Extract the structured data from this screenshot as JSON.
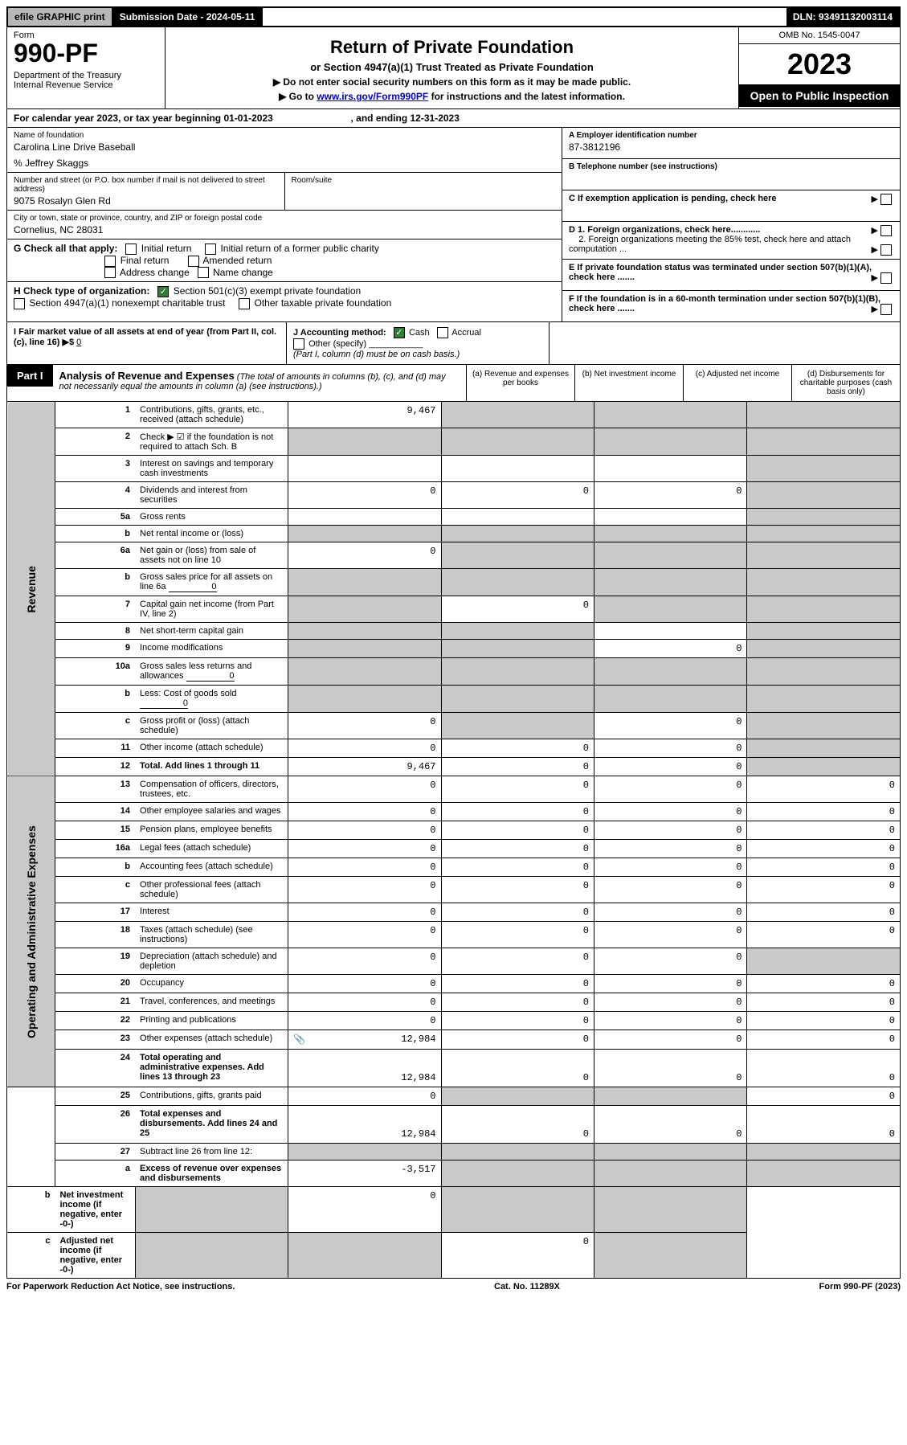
{
  "top": {
    "efile": "efile GRAPHIC print",
    "sub_label": "Submission Date - 2024-05-11",
    "dln": "DLN: 93491132003114"
  },
  "header": {
    "form": "Form",
    "form_no": "990-PF",
    "dept": "Department of the Treasury\nInternal Revenue Service",
    "title": "Return of Private Foundation",
    "subtitle": "or Section 4947(a)(1) Trust Treated as Private Foundation",
    "arrow1": "▶ Do not enter social security numbers on this form as it may be made public.",
    "arrow2_pre": "▶ Go to ",
    "arrow2_link": "www.irs.gov/Form990PF",
    "arrow2_post": " for instructions and the latest information.",
    "omb": "OMB No. 1545-0047",
    "year": "2023",
    "open": "Open to Public Inspection"
  },
  "cal": "For calendar year 2023, or tax year beginning 01-01-2023                             , and ending 12-31-2023",
  "entity": {
    "name_lbl": "Name of foundation",
    "name": "Carolina Line Drive Baseball",
    "care_of": "% Jeffrey Skaggs",
    "addr_lbl": "Number and street (or P.O. box number if mail is not delivered to street address)",
    "addr": "9075 Rosalyn Glen Rd",
    "room_lbl": "Room/suite",
    "city_lbl": "City or town, state or province, country, and ZIP or foreign postal code",
    "city": "Cornelius, NC  28031",
    "a_lbl": "A Employer identification number",
    "a_val": "87-3812196",
    "b_lbl": "B Telephone number (see instructions)",
    "c_lbl": "C If exemption application is pending, check here",
    "d1": "D 1. Foreign organizations, check here............",
    "d2": "2. Foreign organizations meeting the 85% test, check here and attach computation ...",
    "e": "E  If private foundation status was terminated under section 507(b)(1)(A), check here .......",
    "f": "F  If the foundation is in a 60-month termination under section 507(b)(1)(B), check here .......",
    "g": "G Check all that apply:",
    "g_opts": [
      "Initial return",
      "Initial return of a former public charity",
      "Final return",
      "Amended return",
      "Address change",
      "Name change"
    ],
    "h": "H Check type of organization:",
    "h1": "Section 501(c)(3) exempt private foundation",
    "h2": "Section 4947(a)(1) nonexempt charitable trust",
    "h3": "Other taxable private foundation",
    "i": "I Fair market value of all assets at end of year (from Part II, col. (c), line 16) ▶$ ",
    "i_val": "0",
    "j": "J Accounting method:",
    "j_opts": [
      "Cash",
      "Accrual"
    ],
    "j_other": "Other (specify)",
    "j_note": "(Part I, column (d) must be on cash basis.)"
  },
  "part1": {
    "label": "Part I",
    "title": "Analysis of Revenue and Expenses",
    "note": "(The total of amounts in columns (b), (c), and (d) may not necessarily equal the amounts in column (a) (see instructions).)",
    "col_a": "(a)   Revenue and expenses per books",
    "col_b": "(b)   Net investment income",
    "col_c": "(c)   Adjusted net income",
    "col_d": "(d)   Disbursements for charitable purposes (cash basis only)"
  },
  "side": {
    "rev": "Revenue",
    "exp": "Operating and Administrative Expenses"
  },
  "rows": [
    {
      "ln": "1",
      "desc": "Contributions, gifts, grants, etc., received (attach schedule)",
      "a": "9,467",
      "b": "",
      "c": "",
      "d": "",
      "shade": [
        "b",
        "c",
        "d"
      ]
    },
    {
      "ln": "2",
      "desc": "Check ▶ ☑ if the foundation is not required to attach Sch. B",
      "a": "",
      "b": "",
      "c": "",
      "d": "",
      "shade": [
        "a",
        "b",
        "c",
        "d"
      ],
      "bold_not": true
    },
    {
      "ln": "3",
      "desc": "Interest on savings and temporary cash investments",
      "a": "",
      "b": "",
      "c": "",
      "d": "",
      "shade": [
        "d"
      ]
    },
    {
      "ln": "4",
      "desc": "Dividends and interest from securities",
      "a": "0",
      "b": "0",
      "c": "0",
      "d": "",
      "shade": [
        "d"
      ]
    },
    {
      "ln": "5a",
      "desc": "Gross rents",
      "a": "",
      "b": "",
      "c": "",
      "d": "",
      "shade": [
        "d"
      ]
    },
    {
      "ln": "b",
      "desc": "Net rental income or (loss)",
      "a": "",
      "b": "",
      "c": "",
      "d": "",
      "shade": [
        "a",
        "b",
        "c",
        "d"
      ],
      "inline": true
    },
    {
      "ln": "6a",
      "desc": "Net gain or (loss) from sale of assets not on line 10",
      "a": "0",
      "b": "",
      "c": "",
      "d": "",
      "shade": [
        "b",
        "c",
        "d"
      ]
    },
    {
      "ln": "b",
      "desc": "Gross sales price for all assets on line 6a",
      "a": "",
      "b": "",
      "c": "",
      "d": "",
      "shade": [
        "a",
        "b",
        "c",
        "d"
      ],
      "inline": true,
      "inline_val": "0"
    },
    {
      "ln": "7",
      "desc": "Capital gain net income (from Part IV, line 2)",
      "a": "",
      "b": "0",
      "c": "",
      "d": "",
      "shade": [
        "a",
        "c",
        "d"
      ]
    },
    {
      "ln": "8",
      "desc": "Net short-term capital gain",
      "a": "",
      "b": "",
      "c": "",
      "d": "",
      "shade": [
        "a",
        "b",
        "d"
      ]
    },
    {
      "ln": "9",
      "desc": "Income modifications",
      "a": "",
      "b": "",
      "c": "0",
      "d": "",
      "shade": [
        "a",
        "b",
        "d"
      ]
    },
    {
      "ln": "10a",
      "desc": "Gross sales less returns and allowances",
      "a": "",
      "b": "",
      "c": "",
      "d": "",
      "shade": [
        "a",
        "b",
        "c",
        "d"
      ],
      "inline": true,
      "inline_val": "0"
    },
    {
      "ln": "b",
      "desc": "Less: Cost of goods sold",
      "a": "",
      "b": "",
      "c": "",
      "d": "",
      "shade": [
        "a",
        "b",
        "c",
        "d"
      ],
      "inline": true,
      "inline_val": "0"
    },
    {
      "ln": "c",
      "desc": "Gross profit or (loss) (attach schedule)",
      "a": "0",
      "b": "",
      "c": "0",
      "d": "",
      "shade": [
        "b",
        "d"
      ]
    },
    {
      "ln": "11",
      "desc": "Other income (attach schedule)",
      "a": "0",
      "b": "0",
      "c": "0",
      "d": "",
      "shade": [
        "d"
      ]
    },
    {
      "ln": "12",
      "desc": "Total. Add lines 1 through 11",
      "a": "9,467",
      "b": "0",
      "c": "0",
      "d": "",
      "shade": [
        "d"
      ],
      "bold": true
    },
    {
      "ln": "13",
      "desc": "Compensation of officers, directors, trustees, etc.",
      "a": "0",
      "b": "0",
      "c": "0",
      "d": "0"
    },
    {
      "ln": "14",
      "desc": "Other employee salaries and wages",
      "a": "0",
      "b": "0",
      "c": "0",
      "d": "0"
    },
    {
      "ln": "15",
      "desc": "Pension plans, employee benefits",
      "a": "0",
      "b": "0",
      "c": "0",
      "d": "0"
    },
    {
      "ln": "16a",
      "desc": "Legal fees (attach schedule)",
      "a": "0",
      "b": "0",
      "c": "0",
      "d": "0"
    },
    {
      "ln": "b",
      "desc": "Accounting fees (attach schedule)",
      "a": "0",
      "b": "0",
      "c": "0",
      "d": "0"
    },
    {
      "ln": "c",
      "desc": "Other professional fees (attach schedule)",
      "a": "0",
      "b": "0",
      "c": "0",
      "d": "0"
    },
    {
      "ln": "17",
      "desc": "Interest",
      "a": "0",
      "b": "0",
      "c": "0",
      "d": "0"
    },
    {
      "ln": "18",
      "desc": "Taxes (attach schedule) (see instructions)",
      "a": "0",
      "b": "0",
      "c": "0",
      "d": "0"
    },
    {
      "ln": "19",
      "desc": "Depreciation (attach schedule) and depletion",
      "a": "0",
      "b": "0",
      "c": "0",
      "d": "",
      "shade": [
        "d"
      ]
    },
    {
      "ln": "20",
      "desc": "Occupancy",
      "a": "0",
      "b": "0",
      "c": "0",
      "d": "0"
    },
    {
      "ln": "21",
      "desc": "Travel, conferences, and meetings",
      "a": "0",
      "b": "0",
      "c": "0",
      "d": "0"
    },
    {
      "ln": "22",
      "desc": "Printing and publications",
      "a": "0",
      "b": "0",
      "c": "0",
      "d": "0"
    },
    {
      "ln": "23",
      "desc": "Other expenses (attach schedule)",
      "a": "12,984",
      "b": "0",
      "c": "0",
      "d": "0",
      "icon": true
    },
    {
      "ln": "24",
      "desc": "Total operating and administrative expenses. Add lines 13 through 23",
      "a": "12,984",
      "b": "0",
      "c": "0",
      "d": "0",
      "bold": true,
      "tall": true
    },
    {
      "ln": "25",
      "desc": "Contributions, gifts, grants paid",
      "a": "0",
      "b": "",
      "c": "",
      "d": "0",
      "shade": [
        "b",
        "c"
      ]
    },
    {
      "ln": "26",
      "desc": "Total expenses and disbursements. Add lines 24 and 25",
      "a": "12,984",
      "b": "0",
      "c": "0",
      "d": "0",
      "bold": true,
      "tall": true
    },
    {
      "ln": "27",
      "desc": "Subtract line 26 from line 12:",
      "a": "",
      "b": "",
      "c": "",
      "d": "",
      "shade": [
        "a",
        "b",
        "c",
        "d"
      ]
    },
    {
      "ln": "a",
      "desc": "Excess of revenue over expenses and disbursements",
      "a": "-3,517",
      "b": "",
      "c": "",
      "d": "",
      "shade": [
        "b",
        "c",
        "d"
      ],
      "bold": true
    },
    {
      "ln": "b",
      "desc": "Net investment income (if negative, enter -0-)",
      "a": "",
      "b": "0",
      "c": "",
      "d": "",
      "shade": [
        "a",
        "c",
        "d"
      ],
      "bold": true
    },
    {
      "ln": "c",
      "desc": "Adjusted net income (if negative, enter -0-)",
      "a": "",
      "b": "",
      "c": "0",
      "d": "",
      "shade": [
        "a",
        "b",
        "d"
      ],
      "bold": true
    }
  ],
  "footer": {
    "left": "For Paperwork Reduction Act Notice, see instructions.",
    "mid": "Cat. No. 11289X",
    "right": "Form 990-PF (2023)"
  },
  "colors": {
    "black": "#000000",
    "grey_bg": "#c9c9c9",
    "efile_bg": "#b8b8b8",
    "green": "#2e7d32",
    "link": "#0000cc"
  }
}
